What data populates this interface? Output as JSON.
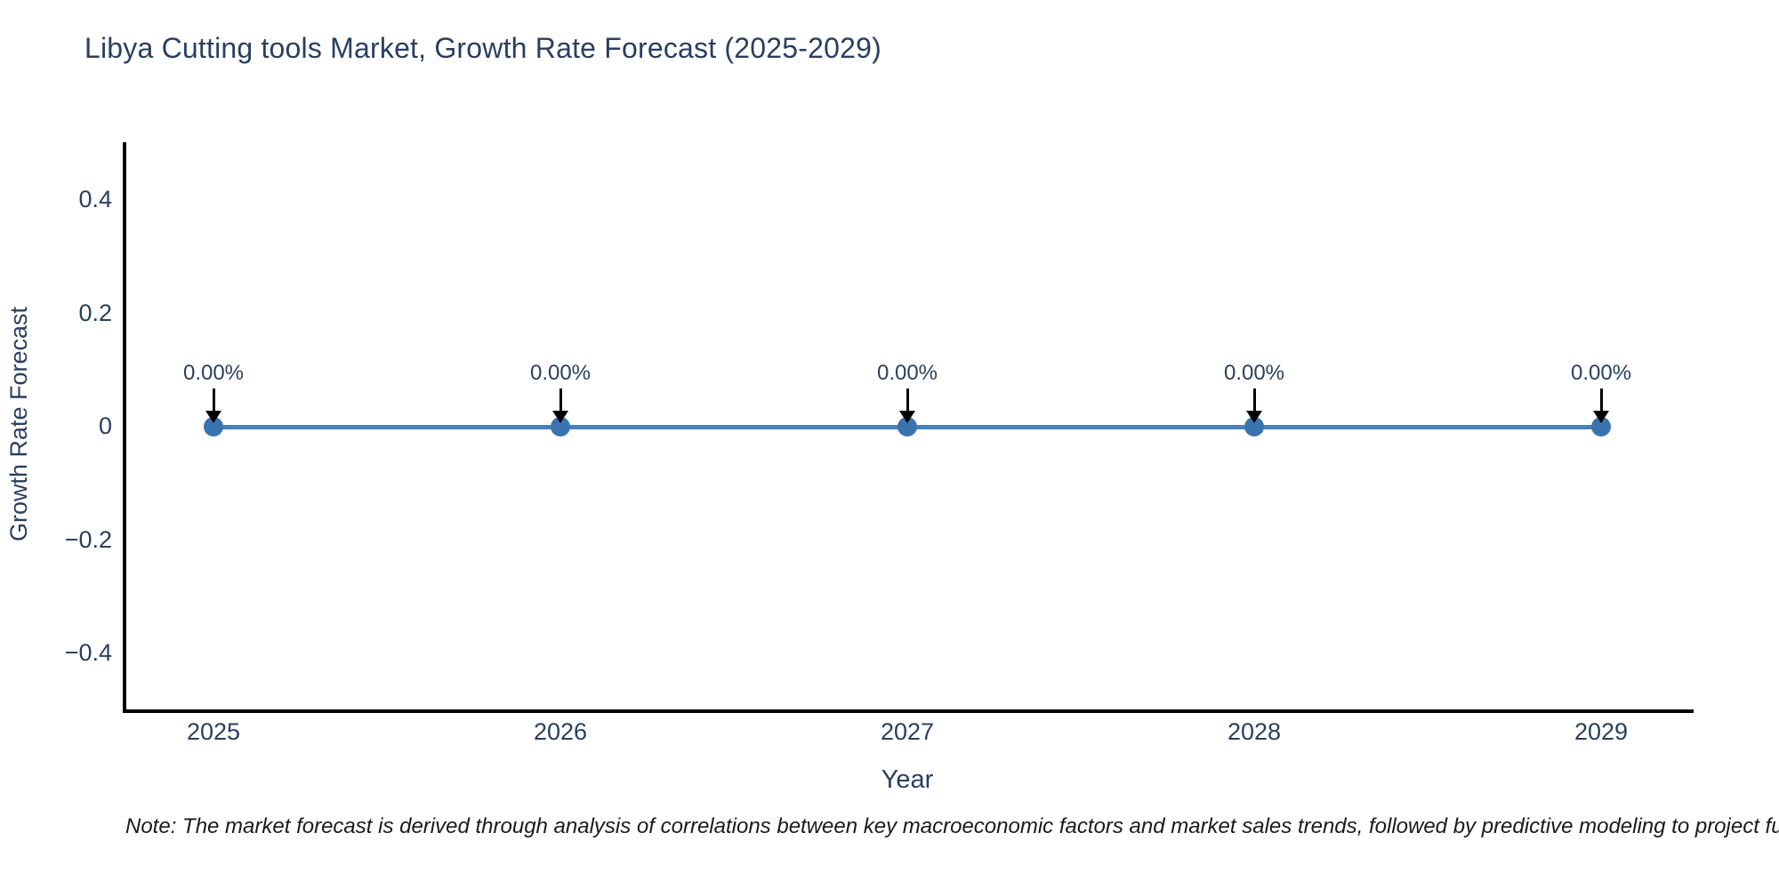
{
  "chart": {
    "title": "Libya Cutting tools Market, Growth Rate Forecast (2025-2029)",
    "xlabel": "Year",
    "ylabel": "Growth Rate Forecast",
    "note": "Note: The market forecast is derived through analysis of correlations between key macroeconomic factors and market sales trends, followed by predictive modeling to project future sales"
  },
  "chart_data": {
    "type": "line",
    "title": "Libya Cutting tools Market, Growth Rate Forecast (2025-2029)",
    "xlabel": "Year",
    "ylabel": "Growth Rate Forecast",
    "x": [
      2025,
      2026,
      2027,
      2028,
      2029
    ],
    "series": [
      {
        "name": "Growth Rate Forecast",
        "values": [
          0,
          0,
          0,
          0,
          0
        ],
        "point_labels": [
          "0.00%",
          "0.00%",
          "0.00%",
          "0.00%",
          "0.00%"
        ]
      }
    ],
    "ylim": [
      -0.5,
      0.5
    ],
    "yticks": [
      0.4,
      0.2,
      0,
      -0.2,
      -0.4
    ],
    "ytick_labels": [
      "0.4",
      "0.2",
      "0",
      "−0.2",
      "−0.4"
    ],
    "xtick_labels": [
      "2025",
      "2026",
      "2027",
      "2028",
      "2029"
    ],
    "grid": false,
    "legend": false,
    "annotations": "black arrow pointing down to each data point with 0.00% label",
    "colors": {
      "line": "#4a80b8",
      "marker": "#3a74b0",
      "arrow": "#000000",
      "axis": "#000000",
      "text": "#2a3f5f"
    }
  }
}
